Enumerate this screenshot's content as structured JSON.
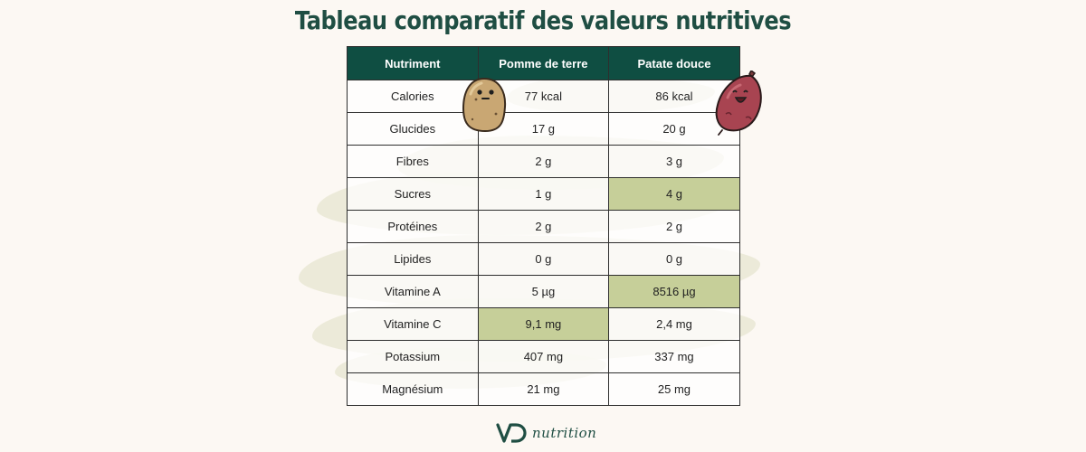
{
  "title": "Tableau comparatif des valeurs nutritives",
  "table": {
    "headers": [
      "Nutriment",
      "Pomme de terre",
      "Patate douce"
    ],
    "rows": [
      [
        "Calories",
        "77 kcal",
        "86 kcal"
      ],
      [
        "Glucides",
        "17 g",
        "20 g"
      ],
      [
        "Fibres",
        "2 g",
        "3 g"
      ],
      [
        "Sucres",
        "1 g",
        "4 g"
      ],
      [
        "Protéines",
        "2 g",
        "2 g"
      ],
      [
        "Lipides",
        "0 g",
        "0 g"
      ],
      [
        "Vitamine A",
        "5 µg",
        "8516 µg"
      ],
      [
        "Vitamine C",
        "9,1 mg",
        "2,4 mg"
      ],
      [
        "Potassium",
        "407 mg",
        "337 mg"
      ],
      [
        "Magnésium",
        "21 mg",
        "25 mg"
      ]
    ]
  },
  "colors": {
    "header_bg": "#0f4e42",
    "highlight": "#c6cf99",
    "title": "#1f4e43",
    "background": "#fcf8f3"
  },
  "illustrations": {
    "potato": "potato-character-icon",
    "sweet_potato": "sweet-potato-character-icon"
  },
  "logo": {
    "mark": "VD",
    "text": "nutrition"
  }
}
